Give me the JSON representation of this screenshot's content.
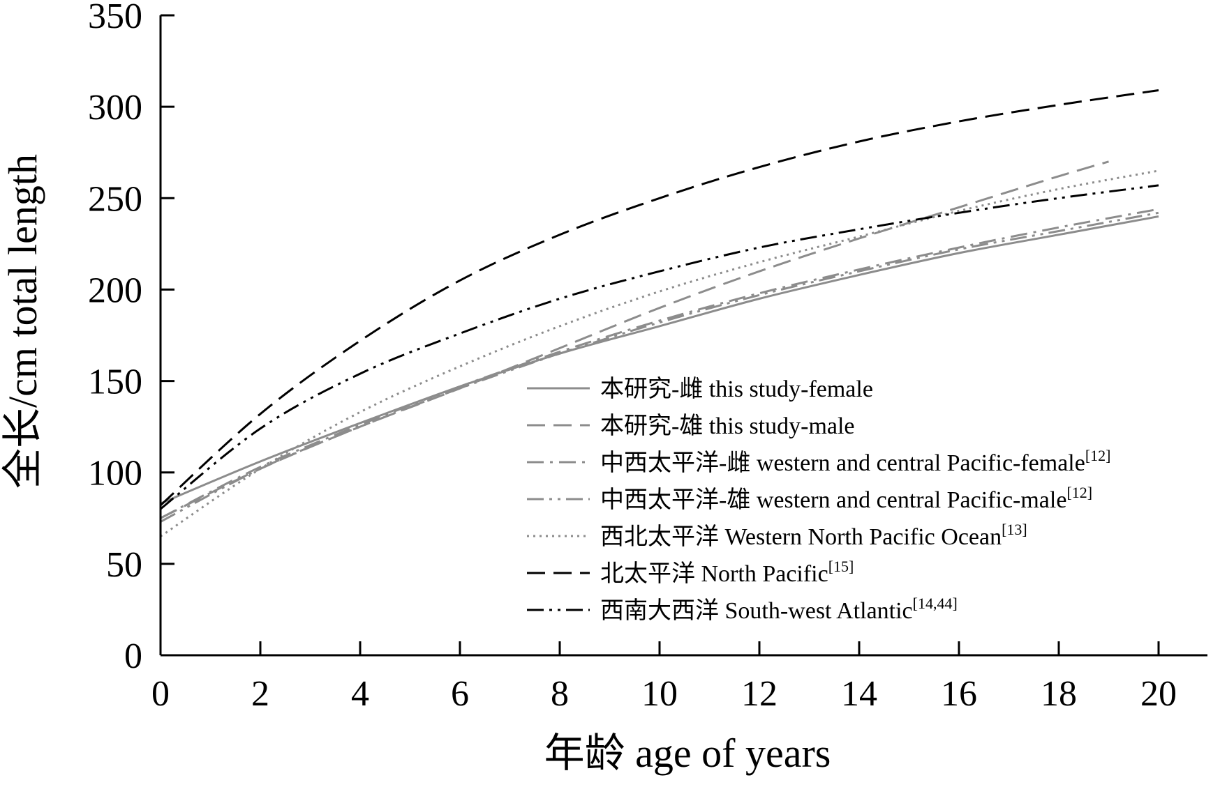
{
  "chart_data": {
    "type": "line",
    "xlabel": "年龄 age of years",
    "ylabel": "全长/cm total length",
    "xlim": [
      0,
      20
    ],
    "ylim": [
      0,
      350
    ],
    "x_ticks": [
      "0",
      "2",
      "4",
      "6",
      "8",
      "10",
      "12",
      "14",
      "16",
      "18",
      "20"
    ],
    "y_ticks": [
      "0",
      "50",
      "100",
      "150",
      "200",
      "250",
      "300",
      "350"
    ],
    "grid": false,
    "legend_position": "bottom-right",
    "series": [
      {
        "name": "本研究-雌 this study-female",
        "ref": "",
        "color": "#8c8c8c",
        "dash": "solid",
        "x": [
          0,
          2,
          4,
          6,
          8,
          10,
          12,
          14,
          16,
          18,
          20
        ],
        "values": [
          83,
          106,
          127,
          147,
          165,
          180,
          195,
          208,
          220,
          230,
          240
        ]
      },
      {
        "name": "本研究-雄 this study-male",
        "ref": "",
        "color": "#8c8c8c",
        "dash": "dash",
        "x": [
          0,
          2,
          4,
          6,
          8,
          10,
          12,
          14,
          16,
          18,
          19
        ],
        "values": [
          75,
          102,
          125,
          146,
          168,
          190,
          210,
          228,
          245,
          262,
          270
        ]
      },
      {
        "name": "中西太平洋-雌 western and central Pacific-female",
        "ref": "[12]",
        "color": "#8c8c8c",
        "dash": "dashdot",
        "x": [
          0,
          2,
          4,
          6,
          8,
          10,
          12,
          14,
          16,
          18,
          20
        ],
        "values": [
          75,
          103,
          126,
          147,
          166,
          183,
          198,
          211,
          223,
          234,
          244
        ]
      },
      {
        "name": "中西太平洋-雄 western and central Pacific-male",
        "ref": "[12]",
        "color": "#8c8c8c",
        "dash": "dashdotdot",
        "x": [
          0,
          2,
          4,
          6,
          8,
          10,
          12,
          14,
          16,
          18,
          20
        ],
        "values": [
          73,
          102,
          125,
          146,
          165,
          182,
          197,
          210,
          222,
          232,
          242
        ]
      },
      {
        "name": "西北太平洋 Western North Pacific Ocean",
        "ref": "[13]",
        "color": "#8c8c8c",
        "dash": "dot",
        "x": [
          0,
          2,
          4,
          6,
          8,
          10,
          12,
          14,
          16,
          18,
          20
        ],
        "values": [
          65,
          102,
          133,
          158,
          180,
          199,
          215,
          229,
          243,
          255,
          265
        ]
      },
      {
        "name": "北太平洋 North Pacific",
        "ref": "[15]",
        "color": "#000000",
        "dash": "dash",
        "x": [
          0,
          2,
          4,
          6,
          8,
          10,
          12,
          14,
          16,
          18,
          20
        ],
        "values": [
          82,
          132,
          172,
          205,
          230,
          250,
          267,
          281,
          292,
          301,
          309
        ]
      },
      {
        "name": "西南大西洋 South-west Atlantic",
        "ref": "[14,44]",
        "color": "#000000",
        "dash": "dashdotdot",
        "x": [
          0,
          2,
          4,
          6,
          8,
          10,
          12,
          14,
          16,
          18,
          20
        ],
        "values": [
          80,
          124,
          154,
          176,
          195,
          210,
          223,
          233,
          242,
          250,
          257
        ]
      }
    ]
  }
}
